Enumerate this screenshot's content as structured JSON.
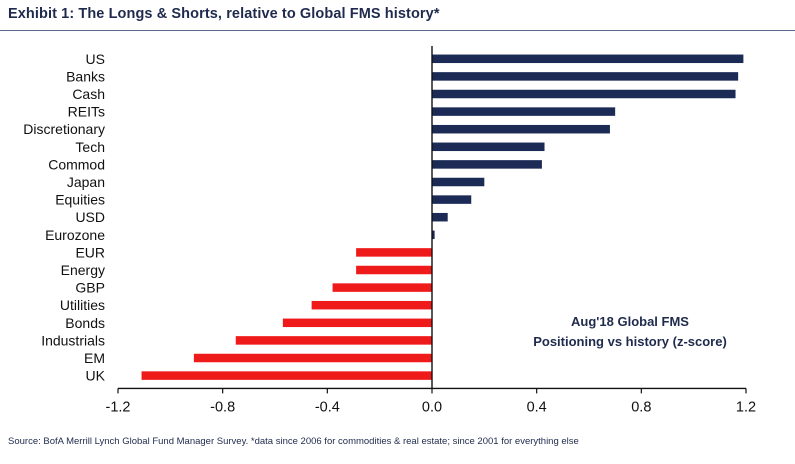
{
  "title": "Exhibit 1: The Longs & Shorts, relative to Global FMS history*",
  "annotation": {
    "line1": "Aug'18 Global FMS",
    "line2": "Positioning vs history (z-score)"
  },
  "source": "Source: BofA Merrill Lynch Global Fund Manager Survey. *data since 2006 for commodities & real estate; since 2001 for everything else",
  "colors": {
    "positive": "#1c2a56",
    "negative": "#ef1b1b",
    "axis": "#111111"
  },
  "chart_data": {
    "type": "bar",
    "orientation": "horizontal",
    "categories": [
      "US",
      "Banks",
      "Cash",
      "REITs",
      "Discretionary",
      "Tech",
      "Commod",
      "Japan",
      "Equities",
      "USD",
      "Eurozone",
      "EUR",
      "Energy",
      "GBP",
      "Utilities",
      "Bonds",
      "Industrials",
      "EM",
      "UK"
    ],
    "values": [
      1.19,
      1.17,
      1.16,
      0.7,
      0.68,
      0.43,
      0.42,
      0.2,
      0.15,
      0.06,
      0.01,
      -0.29,
      -0.29,
      -0.38,
      -0.46,
      -0.57,
      -0.75,
      -0.91,
      -1.11
    ],
    "xlim": [
      -1.2,
      1.2
    ],
    "xticks": [
      "-1.2",
      "-0.8",
      "-0.4",
      "0.0",
      "0.4",
      "0.8",
      "1.2"
    ],
    "xlabel": "",
    "ylabel": "",
    "grid": false,
    "legend": "none"
  }
}
